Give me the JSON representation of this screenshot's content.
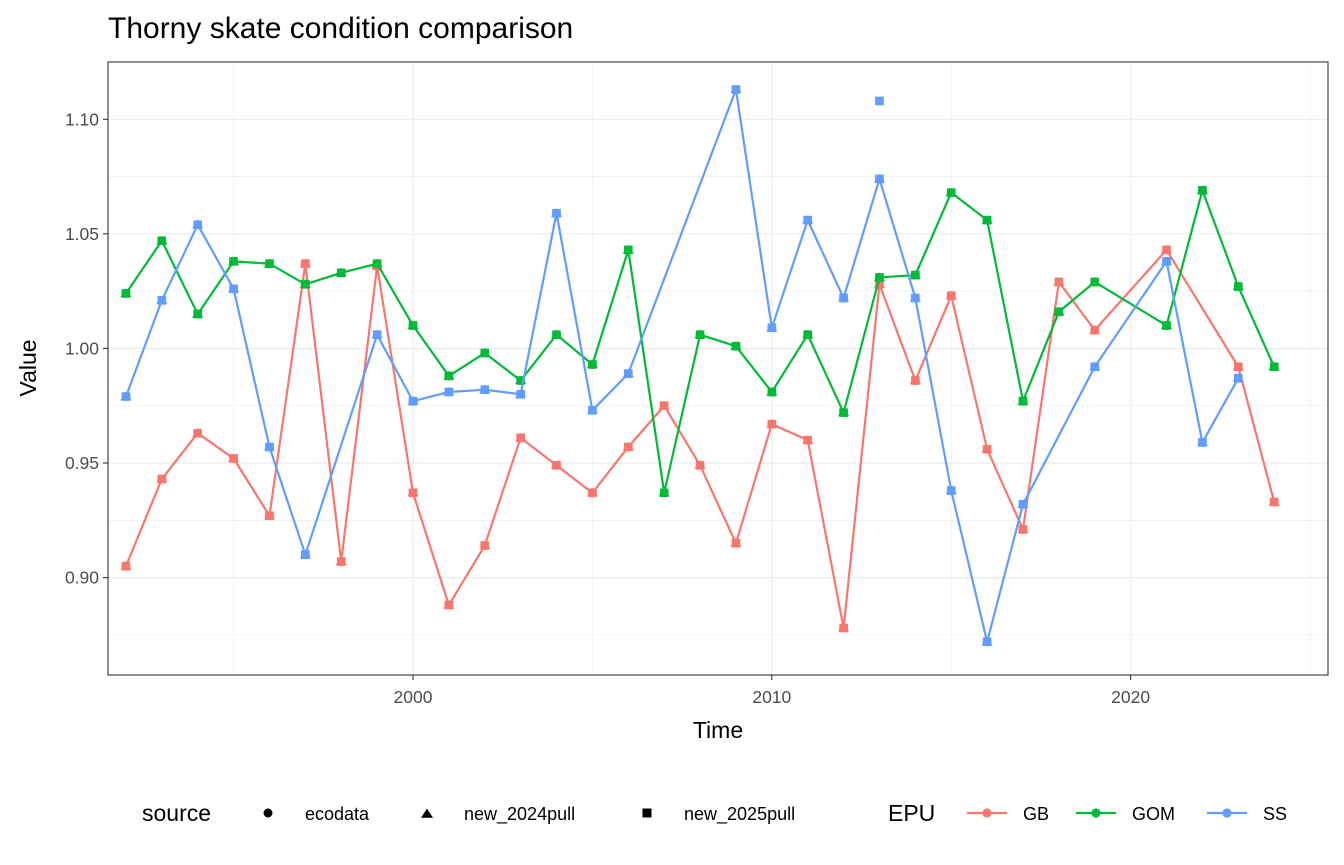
{
  "chart_data": {
    "type": "line",
    "title": "Thorny skate condition comparison",
    "xlabel": "Time",
    "ylabel": "Value",
    "xlim": [
      1991.5,
      2025.5
    ],
    "ylim": [
      0.8575,
      1.125
    ],
    "x_ticks": [
      2000,
      2010,
      2020
    ],
    "y_ticks": [
      0.9,
      0.95,
      1.0,
      1.05,
      1.1
    ],
    "y_tick_labels": [
      "0.90",
      "0.95",
      "1.00",
      "1.05",
      "1.10"
    ],
    "grid": true,
    "legend_position": "bottom",
    "legends": [
      {
        "title": "source",
        "kind": "shape",
        "entries": [
          {
            "label": "ecodata",
            "shape": "circle"
          },
          {
            "label": "new_2024pull",
            "shape": "triangle"
          },
          {
            "label": "new_2025pull",
            "shape": "square"
          }
        ]
      },
      {
        "title": "EPU",
        "kind": "color",
        "entries": [
          {
            "label": "GB",
            "color": "#F8766D"
          },
          {
            "label": "GOM",
            "color": "#00BA38"
          },
          {
            "label": "SS",
            "color": "#619CFF"
          }
        ]
      }
    ],
    "series": [
      {
        "name": "GB",
        "color": "#F8766D",
        "x": [
          1992,
          1993,
          1994,
          1995,
          1996,
          1997,
          1998,
          1999,
          2000,
          2001,
          2002,
          2003,
          2004,
          2005,
          2006,
          2007,
          2008,
          2009,
          2010,
          2011,
          2012,
          2013,
          2014,
          2015,
          2016,
          2017,
          2018,
          2019,
          2021,
          2023,
          2024
        ],
        "values": [
          0.905,
          0.943,
          0.963,
          0.952,
          0.927,
          1.037,
          0.907,
          1.036,
          0.937,
          0.888,
          0.914,
          0.961,
          0.949,
          0.937,
          0.957,
          0.975,
          0.949,
          0.915,
          0.967,
          0.96,
          0.878,
          1.028,
          0.986,
          1.023,
          0.956,
          0.921,
          1.029,
          1.008,
          1.043,
          0.992,
          0.933
        ]
      },
      {
        "name": "GOM",
        "color": "#00BA38",
        "x": [
          1992,
          1993,
          1994,
          1995,
          1996,
          1997,
          1998,
          1999,
          2000,
          2001,
          2002,
          2003,
          2004,
          2005,
          2006,
          2007,
          2008,
          2009,
          2010,
          2011,
          2012,
          2013,
          2014,
          2015,
          2016,
          2017,
          2018,
          2019,
          2021,
          2022,
          2023,
          2024
        ],
        "values": [
          1.024,
          1.047,
          1.015,
          1.038,
          1.037,
          1.028,
          1.033,
          1.037,
          1.01,
          0.988,
          0.998,
          0.986,
          1.006,
          0.993,
          1.043,
          0.937,
          1.006,
          1.001,
          0.981,
          1.006,
          0.972,
          1.031,
          1.032,
          1.068,
          1.056,
          0.977,
          1.016,
          1.029,
          1.01,
          1.069,
          1.027,
          0.992
        ]
      },
      {
        "name": "SS",
        "color": "#619CFF",
        "x": [
          1992,
          1993,
          1994,
          1995,
          1996,
          1997,
          1999,
          2000,
          2001,
          2002,
          2003,
          2004,
          2005,
          2006,
          2009,
          2010,
          2011,
          2012,
          2013,
          2014,
          2015,
          2016,
          2017,
          2019,
          2021,
          2022,
          2023
        ],
        "values": [
          0.979,
          1.021,
          1.054,
          1.026,
          0.957,
          0.91,
          1.006,
          0.977,
          0.981,
          0.982,
          0.98,
          1.059,
          0.973,
          0.989,
          1.113,
          1.009,
          1.056,
          1.022,
          1.074,
          1.022,
          0.938,
          0.872,
          0.932,
          0.992,
          1.038,
          0.959,
          0.987
        ]
      }
    ],
    "extra_points": [
      {
        "series": "SS",
        "x": 2013,
        "value": 1.108,
        "shape": "square"
      }
    ]
  }
}
